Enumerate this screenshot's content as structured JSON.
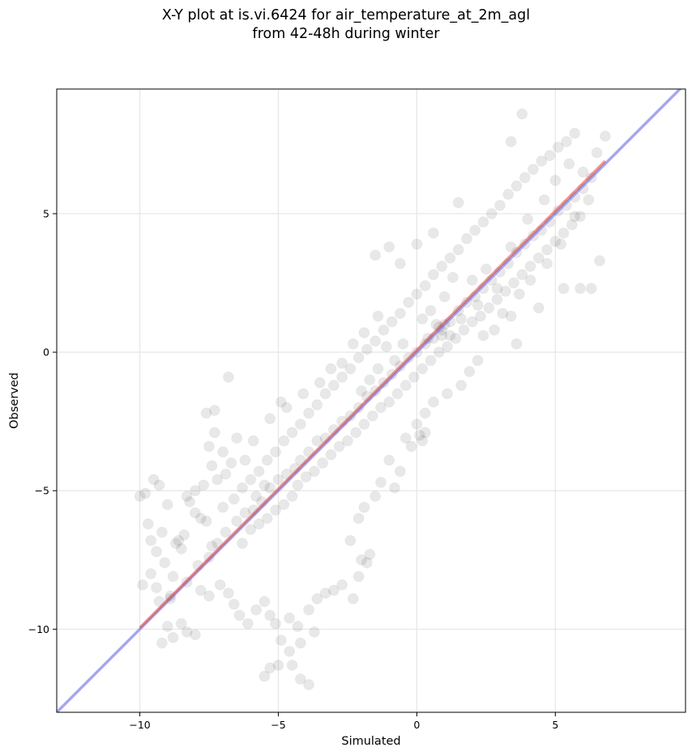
{
  "chart_data": {
    "type": "scatter",
    "title": "X-Y plot at is.vi.6424 for air_temperature_at_2m_agl",
    "subtitle": "from 42-48h during winter",
    "xlabel": "Simulated",
    "ylabel": "Observed",
    "xlim": [
      -13,
      9.7
    ],
    "ylim": [
      -13,
      9.5
    ],
    "xticks": [
      -10,
      -5,
      0,
      5
    ],
    "yticks": [
      -10,
      -5,
      0,
      5
    ],
    "xtick_labels": [
      "−10",
      "−5",
      "0",
      "5"
    ],
    "ytick_labels": [
      "−10",
      "−5",
      "0",
      "5"
    ],
    "grid": true,
    "legend": "none",
    "reference_line": {
      "x": [
        -13,
        9.7
      ],
      "y": [
        -13,
        9.7
      ],
      "color": "#6a6af0"
    },
    "fit_line": {
      "x": [
        -10,
        6.8
      ],
      "y": [
        -9.95,
        6.9
      ],
      "color": "#e0473a"
    },
    "point_color": "#000000",
    "series": [
      {
        "values": [
          [
            -10.0,
            -5.2
          ],
          [
            -9.8,
            -5.1
          ],
          [
            -9.5,
            -4.6
          ],
          [
            -9.3,
            -4.8
          ],
          [
            -9.7,
            -6.2
          ],
          [
            -9.6,
            -6.8
          ],
          [
            -9.2,
            -6.5
          ],
          [
            -9.0,
            -5.5
          ],
          [
            -8.7,
            -6.9
          ],
          [
            -8.5,
            -7.1
          ],
          [
            -8.6,
            -6.8
          ],
          [
            -8.4,
            -6.6
          ],
          [
            -8.2,
            -5.4
          ],
          [
            -8.0,
            -5.0
          ],
          [
            -7.8,
            -6.0
          ],
          [
            -8.9,
            -8.8
          ],
          [
            -9.3,
            -9.0
          ],
          [
            -9.0,
            -9.9
          ],
          [
            -9.2,
            -10.5
          ],
          [
            -8.8,
            -10.3
          ],
          [
            -8.5,
            -9.8
          ],
          [
            -8.3,
            -10.1
          ],
          [
            -8.0,
            -10.2
          ],
          [
            -7.8,
            -8.6
          ],
          [
            -7.5,
            -8.8
          ],
          [
            -9.6,
            -8.0
          ],
          [
            -9.4,
            -7.2
          ],
          [
            -9.1,
            -7.6
          ],
          [
            -8.8,
            -8.1
          ],
          [
            -7.4,
            -7.0
          ],
          [
            -7.6,
            -6.1
          ],
          [
            -7.2,
            -4.6
          ],
          [
            -7.5,
            -3.4
          ],
          [
            -7.3,
            -2.9
          ],
          [
            -7.6,
            -2.2
          ],
          [
            -7.3,
            -2.1
          ],
          [
            -6.8,
            -0.9
          ],
          [
            -6.5,
            -3.1
          ],
          [
            -6.9,
            -4.4
          ],
          [
            -7.0,
            -5.6
          ],
          [
            -7.1,
            -8.4
          ],
          [
            -6.8,
            -8.7
          ],
          [
            -6.6,
            -9.1
          ],
          [
            -6.4,
            -9.5
          ],
          [
            -6.1,
            -9.8
          ],
          [
            -5.8,
            -9.3
          ],
          [
            -5.5,
            -9.0
          ],
          [
            -5.3,
            -9.5
          ],
          [
            -5.1,
            -9.8
          ],
          [
            -4.9,
            -10.4
          ],
          [
            -4.6,
            -10.8
          ],
          [
            -4.5,
            -11.3
          ],
          [
            -5.3,
            -11.4
          ],
          [
            -5.5,
            -11.7
          ],
          [
            -5.0,
            -11.3
          ],
          [
            -4.2,
            -11.8
          ],
          [
            -3.9,
            -12.0
          ],
          [
            -4.2,
            -10.5
          ],
          [
            -3.7,
            -10.1
          ],
          [
            -4.6,
            -9.6
          ],
          [
            -4.3,
            -9.9
          ],
          [
            -3.9,
            -9.3
          ],
          [
            -3.6,
            -8.9
          ],
          [
            -3.3,
            -8.7
          ],
          [
            -3.0,
            -8.6
          ],
          [
            -2.7,
            -8.4
          ],
          [
            -2.3,
            -8.9
          ],
          [
            -2.1,
            -8.1
          ],
          [
            -2.0,
            -7.5
          ],
          [
            -1.8,
            -7.6
          ],
          [
            -1.7,
            -7.3
          ],
          [
            -2.4,
            -6.8
          ],
          [
            -2.1,
            -6.0
          ],
          [
            -1.9,
            -5.6
          ],
          [
            -1.5,
            -5.2
          ],
          [
            -1.3,
            -4.7
          ],
          [
            -0.8,
            -4.9
          ],
          [
            -0.6,
            -4.3
          ],
          [
            -1.0,
            -3.9
          ],
          [
            -0.4,
            -3.1
          ],
          [
            -0.2,
            -3.4
          ],
          [
            0.1,
            -3.0
          ],
          [
            0.3,
            -2.9
          ],
          [
            0.2,
            -3.2
          ],
          [
            -5.9,
            -5.7
          ],
          [
            -5.6,
            -5.4
          ],
          [
            -5.3,
            -4.9
          ],
          [
            -5.0,
            -4.6
          ],
          [
            -4.7,
            -4.4
          ],
          [
            -4.4,
            -4.2
          ],
          [
            -4.2,
            -3.9
          ],
          [
            -3.9,
            -3.6
          ],
          [
            -3.6,
            -3.2
          ],
          [
            -3.3,
            -3.1
          ],
          [
            -3.0,
            -2.8
          ],
          [
            -2.7,
            -2.5
          ],
          [
            -2.4,
            -2.3
          ],
          [
            -2.1,
            -2.0
          ],
          [
            -1.8,
            -1.6
          ],
          [
            -1.5,
            -1.4
          ],
          [
            -1.2,
            -1.1
          ],
          [
            -0.9,
            -0.8
          ],
          [
            -0.6,
            -0.5
          ],
          [
            -0.3,
            -0.2
          ],
          [
            0.0,
            0.0
          ],
          [
            0.3,
            0.3
          ],
          [
            0.6,
            0.5
          ],
          [
            0.9,
            0.8
          ],
          [
            1.2,
            1.1
          ],
          [
            1.5,
            1.5
          ],
          [
            1.8,
            1.8
          ],
          [
            2.1,
            2.0
          ],
          [
            2.4,
            2.3
          ],
          [
            2.7,
            2.6
          ],
          [
            3.0,
            2.9
          ],
          [
            3.3,
            3.2
          ],
          [
            3.6,
            3.6
          ],
          [
            3.9,
            3.9
          ],
          [
            4.2,
            4.2
          ],
          [
            4.5,
            4.4
          ],
          [
            4.8,
            4.7
          ],
          [
            5.1,
            5.1
          ],
          [
            5.4,
            5.3
          ],
          [
            5.7,
            5.6
          ],
          [
            6.0,
            5.9
          ],
          [
            6.3,
            6.3
          ],
          [
            -6.3,
            -6.9
          ],
          [
            -6.0,
            -6.4
          ],
          [
            -5.7,
            -6.2
          ],
          [
            -5.4,
            -6.0
          ],
          [
            -5.1,
            -5.7
          ],
          [
            -4.8,
            -5.5
          ],
          [
            -4.5,
            -5.2
          ],
          [
            -4.3,
            -4.8
          ],
          [
            -4.0,
            -4.5
          ],
          [
            -3.7,
            -4.3
          ],
          [
            -3.4,
            -4.0
          ],
          [
            -3.1,
            -3.7
          ],
          [
            -2.8,
            -3.4
          ],
          [
            -2.5,
            -3.2
          ],
          [
            -2.2,
            -2.9
          ],
          [
            -1.9,
            -2.6
          ],
          [
            -1.6,
            -2.3
          ],
          [
            -1.3,
            -2.0
          ],
          [
            -1.0,
            -1.8
          ],
          [
            -0.7,
            -1.5
          ],
          [
            -0.4,
            -1.2
          ],
          [
            -0.1,
            -0.9
          ],
          [
            0.2,
            -0.6
          ],
          [
            0.5,
            -0.3
          ],
          [
            0.8,
            0.0
          ],
          [
            1.1,
            0.2
          ],
          [
            1.4,
            0.5
          ],
          [
            1.7,
            0.8
          ],
          [
            2.0,
            1.1
          ],
          [
            2.3,
            1.3
          ],
          [
            2.6,
            1.6
          ],
          [
            2.9,
            1.9
          ],
          [
            3.2,
            2.2
          ],
          [
            3.5,
            2.5
          ],
          [
            3.8,
            2.8
          ],
          [
            4.1,
            3.1
          ],
          [
            4.4,
            3.4
          ],
          [
            4.7,
            3.7
          ],
          [
            5.0,
            4.0
          ],
          [
            5.3,
            4.3
          ],
          [
            5.6,
            4.6
          ],
          [
            5.9,
            4.9
          ],
          [
            -6.6,
            -5.3
          ],
          [
            -6.3,
            -4.9
          ],
          [
            -6.0,
            -4.6
          ],
          [
            -5.7,
            -4.3
          ],
          [
            -5.4,
            -3.9
          ],
          [
            -5.1,
            -3.6
          ],
          [
            -4.8,
            -3.2
          ],
          [
            -4.5,
            -2.9
          ],
          [
            -4.2,
            -2.6
          ],
          [
            -3.9,
            -2.2
          ],
          [
            -3.6,
            -1.9
          ],
          [
            -3.3,
            -1.5
          ],
          [
            -3.0,
            -1.2
          ],
          [
            -2.7,
            -0.9
          ],
          [
            -2.4,
            -0.6
          ],
          [
            -2.1,
            -0.2
          ],
          [
            -1.8,
            0.1
          ],
          [
            -1.5,
            0.4
          ],
          [
            -1.2,
            0.8
          ],
          [
            -0.9,
            1.1
          ],
          [
            -0.6,
            1.4
          ],
          [
            -0.3,
            1.8
          ],
          [
            0.0,
            2.1
          ],
          [
            0.3,
            2.4
          ],
          [
            0.6,
            2.8
          ],
          [
            0.9,
            3.1
          ],
          [
            1.2,
            3.4
          ],
          [
            1.5,
            3.7
          ],
          [
            1.8,
            4.1
          ],
          [
            2.1,
            4.4
          ],
          [
            2.4,
            4.7
          ],
          [
            2.7,
            5.0
          ],
          [
            3.0,
            5.3
          ],
          [
            3.3,
            5.7
          ],
          [
            3.6,
            6.0
          ],
          [
            3.9,
            6.3
          ],
          [
            4.2,
            6.6
          ],
          [
            4.5,
            6.9
          ],
          [
            4.8,
            7.1
          ],
          [
            5.1,
            7.4
          ],
          [
            5.4,
            7.6
          ],
          [
            5.7,
            7.9
          ],
          [
            -1.5,
            3.5
          ],
          [
            -1.0,
            3.8
          ],
          [
            -0.6,
            3.2
          ],
          [
            0.0,
            3.9
          ],
          [
            0.6,
            4.3
          ],
          [
            1.5,
            5.4
          ],
          [
            3.8,
            8.6
          ],
          [
            3.4,
            7.6
          ],
          [
            6.3,
            2.3
          ],
          [
            5.9,
            2.3
          ],
          [
            5.3,
            2.3
          ],
          [
            6.6,
            3.3
          ],
          [
            4.4,
            1.6
          ],
          [
            3.6,
            0.3
          ],
          [
            3.4,
            1.3
          ],
          [
            2.8,
            0.8
          ],
          [
            2.4,
            0.6
          ],
          [
            2.2,
            -0.3
          ],
          [
            1.9,
            -0.7
          ],
          [
            1.6,
            -1.2
          ],
          [
            1.1,
            -1.5
          ],
          [
            0.6,
            -1.8
          ],
          [
            0.3,
            -2.2
          ],
          [
            0.0,
            -2.6
          ],
          [
            2.0,
            2.6
          ],
          [
            2.5,
            3.0
          ],
          [
            1.0,
            2.0
          ],
          [
            0.5,
            1.5
          ],
          [
            1.3,
            2.7
          ],
          [
            0.7,
            1.0
          ],
          [
            1.6,
            1.2
          ],
          [
            2.2,
            1.7
          ],
          [
            2.9,
            2.3
          ],
          [
            3.4,
            3.8
          ],
          [
            4.0,
            4.8
          ],
          [
            4.6,
            5.5
          ],
          [
            5.0,
            6.2
          ],
          [
            5.5,
            6.8
          ],
          [
            6.0,
            6.5
          ],
          [
            6.5,
            7.2
          ],
          [
            6.8,
            7.8
          ],
          [
            6.2,
            5.5
          ],
          [
            5.7,
            4.9
          ],
          [
            5.2,
            3.9
          ],
          [
            4.7,
            3.2
          ],
          [
            4.1,
            2.6
          ],
          [
            3.7,
            2.1
          ],
          [
            3.1,
            1.4
          ],
          [
            0.9,
            0.6
          ],
          [
            1.0,
            1.0
          ],
          [
            0.4,
            0.5
          ],
          [
            0.8,
            0.9
          ],
          [
            1.2,
            0.6
          ],
          [
            0.2,
            1.2
          ],
          [
            -0.5,
            0.3
          ],
          [
            -0.8,
            -0.3
          ],
          [
            -1.1,
            0.2
          ],
          [
            -1.4,
            -0.6
          ],
          [
            -1.7,
            -1.0
          ],
          [
            -2.0,
            -1.4
          ],
          [
            -8.3,
            -5.2
          ],
          [
            -8.0,
            -5.8
          ],
          [
            -7.7,
            -4.8
          ],
          [
            -7.4,
            -4.1
          ],
          [
            -7.0,
            -3.6
          ],
          [
            -6.7,
            -4.0
          ],
          [
            -6.2,
            -3.9
          ],
          [
            -5.9,
            -3.2
          ],
          [
            -5.3,
            -2.4
          ],
          [
            -4.9,
            -1.8
          ],
          [
            -4.7,
            -2.0
          ],
          [
            -4.1,
            -1.5
          ],
          [
            -3.5,
            -1.1
          ],
          [
            -3.1,
            -0.6
          ],
          [
            -2.7,
            -0.4
          ],
          [
            -2.3,
            0.3
          ],
          [
            -1.9,
            0.7
          ],
          [
            -1.4,
            1.3
          ],
          [
            -9.9,
            -8.4
          ],
          [
            -9.4,
            -8.5
          ],
          [
            -8.9,
            -8.9
          ],
          [
            -8.3,
            -8.3
          ],
          [
            -7.9,
            -7.7
          ],
          [
            -7.5,
            -7.4
          ],
          [
            -7.2,
            -6.9
          ],
          [
            -6.9,
            -6.5
          ],
          [
            -6.5,
            -6.1
          ],
          [
            -6.2,
            -5.8
          ],
          [
            -5.8,
            -5.2
          ],
          [
            -5.5,
            -4.8
          ]
        ]
      }
    ]
  }
}
